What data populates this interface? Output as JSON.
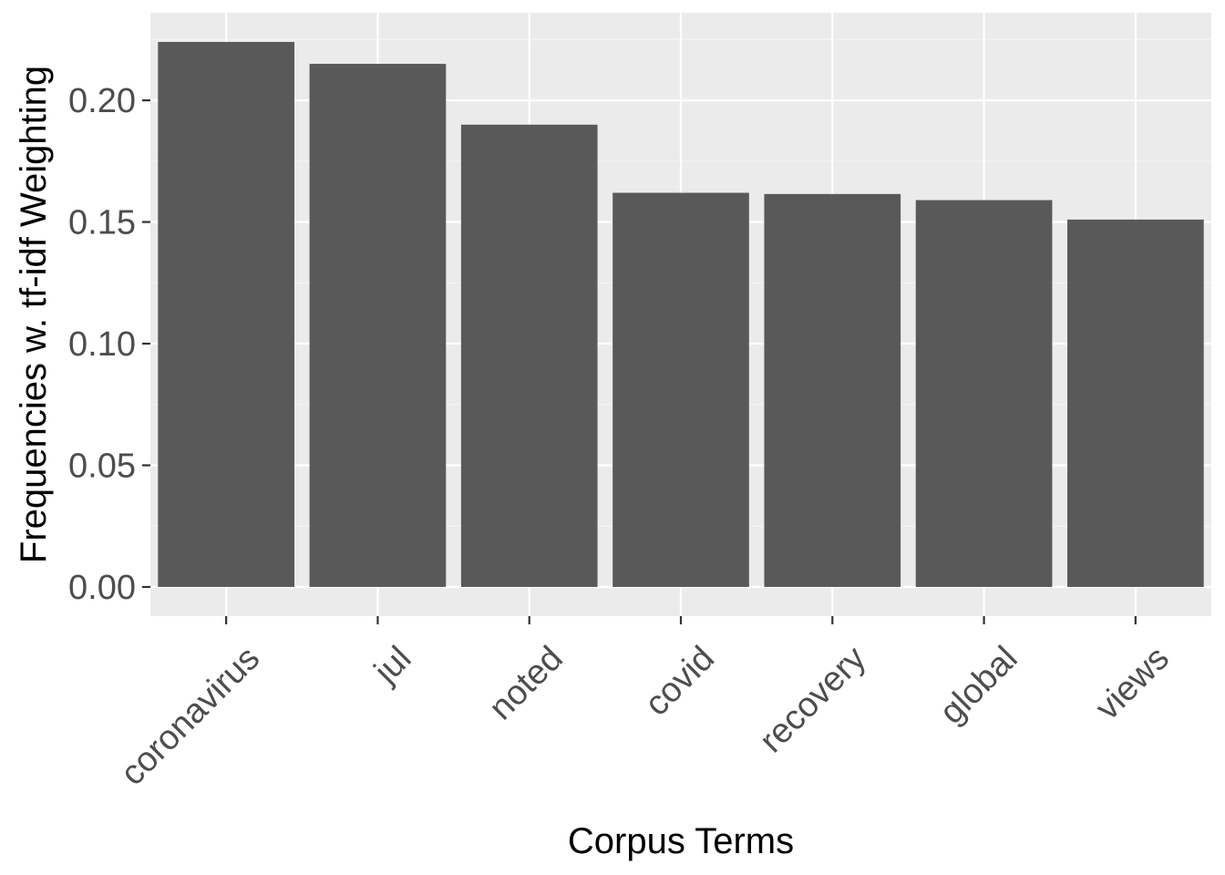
{
  "chart_data": {
    "type": "bar",
    "xlabel": "Corpus Terms",
    "ylabel": "Frequencies w. tf-idf Weighting",
    "categories": [
      "coronavirus",
      "jul",
      "noted",
      "covid",
      "recovery",
      "global",
      "views"
    ],
    "values": [
      0.224,
      0.215,
      0.19,
      0.162,
      0.1615,
      0.159,
      0.151
    ],
    "ylim": [
      -0.012,
      0.236
    ],
    "yticks": [
      "0.00",
      "0.05",
      "0.10",
      "0.15",
      "0.20"
    ],
    "grid": true,
    "colors": {
      "bar": "#595959",
      "panel": "#ebebeb",
      "grid_major": "#ffffff",
      "grid_minor": "#f5f5f5",
      "tick": "#333333"
    }
  }
}
